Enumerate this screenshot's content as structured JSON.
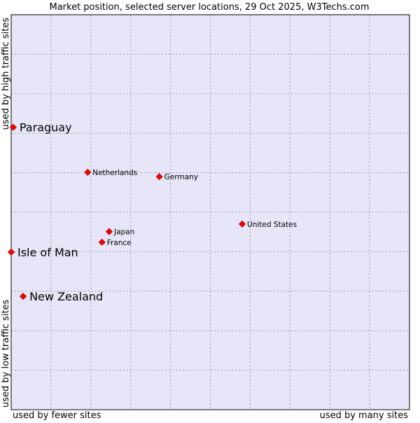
{
  "chart_data": {
    "type": "scatter",
    "title": "Market position, selected server locations, 29 Oct 2025, W3Techs.com",
    "xlabel_left": "used by fewer sites",
    "xlabel_right": "used by many sites",
    "ylabel_bottom": "used by low traffic sites",
    "ylabel_top": "used by high traffic sites",
    "xlim": [
      0,
      100
    ],
    "ylim": [
      0,
      100
    ],
    "grid": true,
    "colors": {
      "plot_background": "#e6e6f8",
      "grid": "#9a9aaa",
      "point": "#ff0000",
      "point_outline": "#aa0000"
    },
    "points": [
      {
        "label": "Paraguay",
        "x": 0.5,
        "y": 71.5,
        "highlight": true
      },
      {
        "label": "Netherlands",
        "x": 19.2,
        "y": 60.1,
        "highlight": false
      },
      {
        "label": "Germany",
        "x": 37.2,
        "y": 59.0,
        "highlight": false
      },
      {
        "label": "United States",
        "x": 58.0,
        "y": 47.0,
        "highlight": false
      },
      {
        "label": "Japan",
        "x": 24.6,
        "y": 45.1,
        "highlight": false
      },
      {
        "label": "France",
        "x": 22.8,
        "y": 42.4,
        "highlight": false
      },
      {
        "label": "Isle of Man",
        "x": 0.0,
        "y": 39.9,
        "highlight": true
      },
      {
        "label": "New Zealand",
        "x": 3.0,
        "y": 28.7,
        "highlight": true
      }
    ]
  }
}
